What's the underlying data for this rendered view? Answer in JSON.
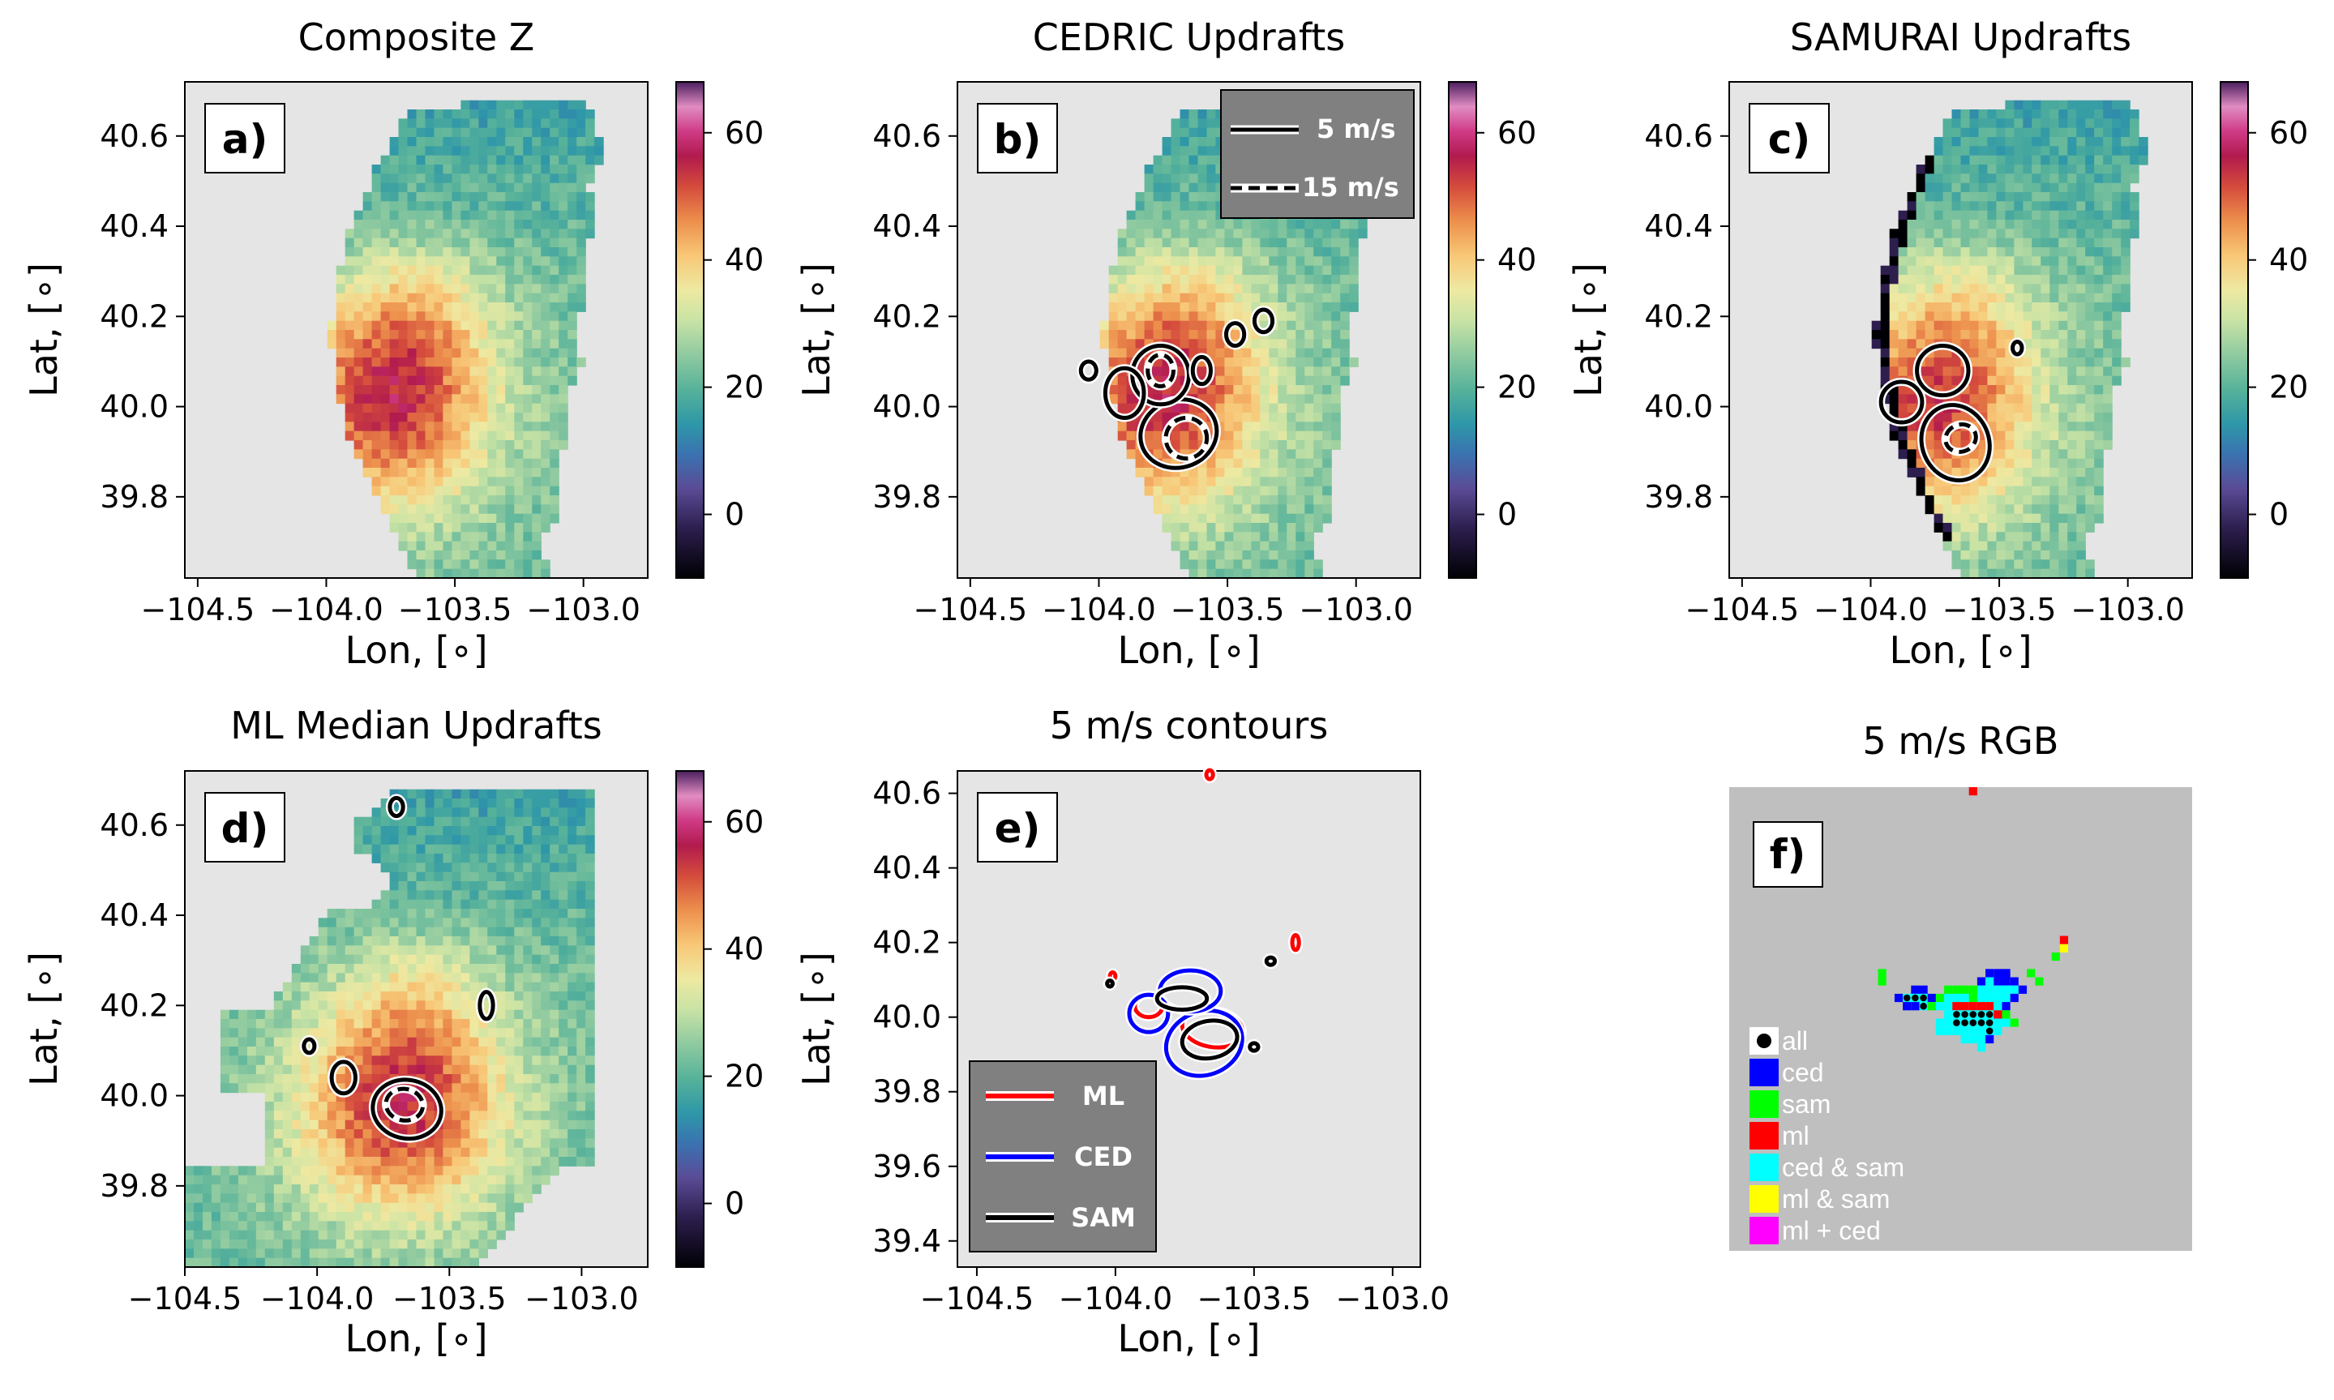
{
  "figure": {
    "colormap_name": "spectral_magenta",
    "background_color": "#e5e5e5",
    "rgb_background_color": "#bfbfbf"
  },
  "chart_data": [
    {
      "type": "heatmap",
      "panel": "a)",
      "title": "Composite Z",
      "xlabel": "Lon, [∘]",
      "ylabel": "Lat, [∘]",
      "xlim": [
        -104.55,
        -102.75
      ],
      "ylim": [
        39.62,
        40.72
      ],
      "xticks": [
        "−104.5",
        "−104.0",
        "−103.5",
        "−103.0"
      ],
      "yticks": [
        "39.8",
        "40.0",
        "40.2",
        "40.4",
        "40.6"
      ],
      "colorbar": {
        "min": -10,
        "max": 68,
        "ticks": [
          "0",
          "20",
          "40",
          "60"
        ]
      },
      "field": "reflectivity",
      "footprint": "cedric",
      "core_value": 57,
      "core_center": [
        -103.75,
        40.02
      ],
      "contours": []
    },
    {
      "type": "heatmap",
      "panel": "b)",
      "title": "CEDRIC Updrafts",
      "xlabel": "Lon, [∘]",
      "ylabel": "Lat, [∘]",
      "xlim": [
        -104.55,
        -102.75
      ],
      "ylim": [
        39.62,
        40.72
      ],
      "xticks": [
        "−104.5",
        "−104.0",
        "−103.5",
        "−103.0"
      ],
      "yticks": [
        "39.8",
        "40.0",
        "40.2",
        "40.4",
        "40.6"
      ],
      "colorbar": {
        "min": -10,
        "max": 68,
        "ticks": [
          "0",
          "20",
          "40",
          "60"
        ]
      },
      "field": "reflectivity",
      "footprint": "cedric",
      "core_value": 57,
      "core_center": [
        -103.75,
        40.02
      ],
      "legend": [
        {
          "label": "5 m/s",
          "style": "solid",
          "level": 5
        },
        {
          "label": "15 m/s",
          "style": "dashed",
          "level": 15
        }
      ],
      "contours": [
        {
          "level": 5,
          "center": [
            -103.69,
            39.94
          ],
          "rx": 0.15,
          "ry": 0.075,
          "angle": -18
        },
        {
          "level": 5,
          "center": [
            -103.76,
            40.07
          ],
          "rx": 0.11,
          "ry": 0.065,
          "angle": 0
        },
        {
          "level": 5,
          "center": [
            -103.9,
            40.03
          ],
          "rx": 0.075,
          "ry": 0.055,
          "angle": 0
        },
        {
          "level": 5,
          "center": [
            -103.6,
            40.08
          ],
          "rx": 0.035,
          "ry": 0.03,
          "angle": 0
        },
        {
          "level": 5,
          "center": [
            -103.47,
            40.16
          ],
          "rx": 0.035,
          "ry": 0.025,
          "angle": 0
        },
        {
          "level": 5,
          "center": [
            -103.36,
            40.19
          ],
          "rx": 0.035,
          "ry": 0.025,
          "angle": 0
        },
        {
          "level": 5,
          "center": [
            -104.04,
            40.08
          ],
          "rx": 0.03,
          "ry": 0.02,
          "angle": 0
        },
        {
          "level": 15,
          "center": [
            -103.66,
            39.93
          ],
          "rx": 0.08,
          "ry": 0.045,
          "angle": -15
        },
        {
          "level": 15,
          "center": [
            -103.76,
            40.08
          ],
          "rx": 0.05,
          "ry": 0.035,
          "angle": 0
        }
      ]
    },
    {
      "type": "heatmap",
      "panel": "c)",
      "title": "SAMURAI Updrafts",
      "xlabel": "Lon, [∘]",
      "ylabel": "Lat, [∘]",
      "xlim": [
        -104.55,
        -102.75
      ],
      "ylim": [
        39.62,
        40.72
      ],
      "xticks": [
        "−104.5",
        "−104.0",
        "−103.5",
        "−103.0"
      ],
      "yticks": [
        "39.8",
        "40.0",
        "40.2",
        "40.4",
        "40.6"
      ],
      "colorbar": {
        "min": -10,
        "max": 68,
        "ticks": [
          "0",
          "20",
          "40",
          "60"
        ]
      },
      "field": "reflectivity",
      "footprint": "samurai",
      "core_value": 55,
      "core_center": [
        -103.75,
        40.0
      ],
      "contours": [
        {
          "level": 5,
          "center": [
            -103.67,
            39.92
          ],
          "rx": 0.13,
          "ry": 0.085,
          "angle": -22
        },
        {
          "level": 5,
          "center": [
            -103.72,
            40.08
          ],
          "rx": 0.1,
          "ry": 0.055,
          "angle": 0
        },
        {
          "level": 5,
          "center": [
            -103.88,
            40.01
          ],
          "rx": 0.08,
          "ry": 0.045,
          "angle": 0
        },
        {
          "level": 5,
          "center": [
            -103.43,
            40.13
          ],
          "rx": 0.018,
          "ry": 0.014,
          "angle": 0
        },
        {
          "level": 15,
          "center": [
            -103.65,
            39.93
          ],
          "rx": 0.06,
          "ry": 0.03,
          "angle": -20
        }
      ]
    },
    {
      "type": "heatmap",
      "panel": "d)",
      "title": "ML Median Updrafts",
      "xlabel": "Lon, [∘]",
      "ylabel": "Lat, [∘]",
      "xlim": [
        -104.5,
        -102.75
      ],
      "ylim": [
        39.62,
        40.72
      ],
      "xticks": [
        "−104.5",
        "−104.0",
        "−103.5",
        "−103.0"
      ],
      "yticks": [
        "39.8",
        "40.0",
        "40.2",
        "40.4",
        "40.6"
      ],
      "colorbar": {
        "min": -10,
        "max": 68,
        "ticks": [
          "0",
          "20",
          "40",
          "60"
        ]
      },
      "field": "reflectivity",
      "footprint": "ml",
      "core_value": 57,
      "core_center": [
        -103.68,
        39.98
      ],
      "contours": [
        {
          "level": 5,
          "center": [
            -103.66,
            39.97
          ],
          "rx": 0.13,
          "ry": 0.065,
          "angle": 10
        },
        {
          "level": 5,
          "center": [
            -103.9,
            40.04
          ],
          "rx": 0.045,
          "ry": 0.035,
          "angle": 0
        },
        {
          "level": 5,
          "center": [
            -103.36,
            40.2
          ],
          "rx": 0.025,
          "ry": 0.03,
          "angle": 0
        },
        {
          "level": 5,
          "center": [
            -104.03,
            40.11
          ],
          "rx": 0.02,
          "ry": 0.015,
          "angle": 0
        },
        {
          "level": 5,
          "center": [
            -103.7,
            40.64
          ],
          "rx": 0.025,
          "ry": 0.02,
          "angle": 0
        },
        {
          "level": 15,
          "center": [
            -103.67,
            39.98
          ],
          "rx": 0.07,
          "ry": 0.035,
          "angle": 10
        }
      ]
    },
    {
      "type": "line",
      "panel": "e)",
      "title": "5 m/s contours",
      "xlabel": "Lon, [∘]",
      "ylabel": "Lat, [∘]",
      "xlim": [
        -104.57,
        -102.9
      ],
      "ylim": [
        39.33,
        40.66
      ],
      "xticks": [
        "−104.5",
        "−104.0",
        "−103.5",
        "−103.0"
      ],
      "yticks": [
        "39.4",
        "39.6",
        "39.8",
        "40.0",
        "40.2",
        "40.4",
        "40.6"
      ],
      "legend": [
        {
          "label": "ML",
          "color": "#ff0000"
        },
        {
          "label": "CED",
          "color": "#0000ff"
        },
        {
          "label": "SAM",
          "color": "#000000"
        }
      ],
      "series": [
        {
          "name": "ML",
          "color": "#ff0000",
          "shapes": [
            {
              "center": [
                -103.65,
                39.97
              ],
              "rx": 0.11,
              "ry": 0.05,
              "angle": 10
            },
            {
              "center": [
                -103.88,
                40.03
              ],
              "rx": 0.05,
              "ry": 0.03,
              "angle": 0
            },
            {
              "center": [
                -103.35,
                40.2
              ],
              "rx": 0.012,
              "ry": 0.02,
              "angle": 0
            },
            {
              "center": [
                -104.01,
                40.11
              ],
              "rx": 0.01,
              "ry": 0.01,
              "angle": 0
            },
            {
              "center": [
                -103.66,
                40.65
              ],
              "rx": 0.012,
              "ry": 0.012,
              "angle": 0
            }
          ]
        },
        {
          "name": "CED",
          "color": "#0000ff",
          "shapes": [
            {
              "center": [
                -103.68,
                39.93
              ],
              "rx": 0.14,
              "ry": 0.085,
              "angle": -20
            },
            {
              "center": [
                -103.73,
                40.07
              ],
              "rx": 0.11,
              "ry": 0.055,
              "angle": 0
            },
            {
              "center": [
                -103.88,
                40.01
              ],
              "rx": 0.07,
              "ry": 0.05,
              "angle": 0
            }
          ]
        },
        {
          "name": "SAM",
          "color": "#000000",
          "shapes": [
            {
              "center": [
                -103.66,
                39.94
              ],
              "rx": 0.1,
              "ry": 0.05,
              "angle": -10
            },
            {
              "center": [
                -103.76,
                40.05
              ],
              "rx": 0.09,
              "ry": 0.03,
              "angle": 0
            },
            {
              "center": [
                -103.44,
                40.15
              ],
              "rx": 0.015,
              "ry": 0.01,
              "angle": 0
            },
            {
              "center": [
                -104.02,
                40.09
              ],
              "rx": 0.01,
              "ry": 0.008,
              "angle": 0
            },
            {
              "center": [
                -103.5,
                39.92
              ],
              "rx": 0.015,
              "ry": 0.01,
              "angle": 0
            }
          ]
        }
      ]
    },
    {
      "type": "heatmap",
      "panel": "f)",
      "title": "5 m/s RGB",
      "legend": [
        {
          "label": "all",
          "color": "#000000",
          "marker": "dot"
        },
        {
          "label": "ced",
          "color": "#0000ff"
        },
        {
          "label": "sam",
          "color": "#00ff00"
        },
        {
          "label": "ml",
          "color": "#ff0000"
        },
        {
          "label": "ced & sam",
          "color": "#00ffff"
        },
        {
          "label": "ml & sam",
          "color": "#ffff00"
        },
        {
          "label": "ml + ced",
          "color": "#ff00ff"
        }
      ],
      "grid_size": [
        56,
        56
      ],
      "cells": [
        [
          29,
          0,
          "ml"
        ],
        [
          40,
          18,
          "ml"
        ],
        [
          40,
          19,
          "yellow"
        ],
        [
          39,
          20,
          "sam"
        ],
        [
          18,
          22,
          "sam"
        ],
        [
          18,
          23,
          "sam"
        ],
        [
          31,
          22,
          "ced"
        ],
        [
          32,
          22,
          "ced"
        ],
        [
          33,
          22,
          "ced"
        ],
        [
          30,
          23,
          "ced"
        ],
        [
          31,
          23,
          "cyan"
        ],
        [
          32,
          23,
          "ced"
        ],
        [
          33,
          23,
          "ced"
        ],
        [
          34,
          23,
          "ced"
        ],
        [
          36,
          22,
          "sam"
        ],
        [
          37,
          23,
          "sam"
        ],
        [
          22,
          24,
          "ced"
        ],
        [
          23,
          24,
          "ced"
        ],
        [
          26,
          24,
          "sam"
        ],
        [
          27,
          24,
          "sam"
        ],
        [
          28,
          24,
          "sam"
        ],
        [
          29,
          24,
          "sam"
        ],
        [
          30,
          24,
          "cyan"
        ],
        [
          31,
          24,
          "cyan"
        ],
        [
          32,
          24,
          "cyan"
        ],
        [
          33,
          24,
          "cyan"
        ],
        [
          34,
          24,
          "cyan"
        ],
        [
          35,
          24,
          "ced"
        ],
        [
          20,
          25,
          "ced"
        ],
        [
          21,
          25,
          "all"
        ],
        [
          22,
          25,
          "all"
        ],
        [
          23,
          25,
          "all"
        ],
        [
          24,
          25,
          "ced"
        ],
        [
          25,
          25,
          "sam"
        ],
        [
          26,
          25,
          "cyan"
        ],
        [
          27,
          25,
          "cyan"
        ],
        [
          28,
          25,
          "cyan"
        ],
        [
          29,
          25,
          "sam"
        ],
        [
          30,
          25,
          "cyan"
        ],
        [
          31,
          25,
          "cyan"
        ],
        [
          32,
          25,
          "cyan"
        ],
        [
          33,
          25,
          "cyan"
        ],
        [
          34,
          25,
          "ced"
        ],
        [
          21,
          26,
          "ced"
        ],
        [
          22,
          26,
          "ced"
        ],
        [
          23,
          26,
          "all"
        ],
        [
          24,
          26,
          "sam"
        ],
        [
          25,
          26,
          "cyan"
        ],
        [
          26,
          26,
          "cyan"
        ],
        [
          27,
          26,
          "ml"
        ],
        [
          28,
          26,
          "ml"
        ],
        [
          29,
          26,
          "ml"
        ],
        [
          30,
          26,
          "ml"
        ],
        [
          31,
          26,
          "ml"
        ],
        [
          32,
          26,
          "cyan"
        ],
        [
          33,
          26,
          "ced"
        ],
        [
          26,
          27,
          "cyan"
        ],
        [
          27,
          27,
          "all"
        ],
        [
          28,
          27,
          "all"
        ],
        [
          29,
          27,
          "all"
        ],
        [
          30,
          27,
          "all"
        ],
        [
          31,
          27,
          "all"
        ],
        [
          32,
          27,
          "ml"
        ],
        [
          33,
          27,
          "sam"
        ],
        [
          25,
          28,
          "cyan"
        ],
        [
          26,
          28,
          "cyan"
        ],
        [
          27,
          28,
          "all"
        ],
        [
          28,
          28,
          "all"
        ],
        [
          29,
          28,
          "all"
        ],
        [
          30,
          28,
          "all"
        ],
        [
          31,
          28,
          "all"
        ],
        [
          32,
          28,
          "cyan"
        ],
        [
          33,
          28,
          "cyan"
        ],
        [
          34,
          28,
          "sam"
        ],
        [
          25,
          29,
          "cyan"
        ],
        [
          26,
          29,
          "cyan"
        ],
        [
          27,
          29,
          "cyan"
        ],
        [
          28,
          29,
          "cyan"
        ],
        [
          29,
          29,
          "cyan"
        ],
        [
          30,
          29,
          "cyan"
        ],
        [
          31,
          29,
          "all"
        ],
        [
          32,
          29,
          "cyan"
        ],
        [
          28,
          30,
          "cyan"
        ],
        [
          29,
          30,
          "cyan"
        ],
        [
          30,
          30,
          "cyan"
        ],
        [
          31,
          30,
          "ced"
        ],
        [
          30,
          31,
          "cyan"
        ]
      ]
    }
  ]
}
